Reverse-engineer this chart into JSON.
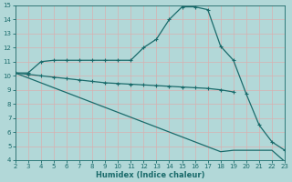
{
  "title": "",
  "xlabel": "Humidex (Indice chaleur)",
  "ylabel": "",
  "bg_color": "#b2d8d8",
  "grid_color": "#e8c8c8",
  "line_color": "#1a6b6b",
  "xlim": [
    2,
    23
  ],
  "ylim": [
    4,
    15
  ],
  "xticks": [
    2,
    3,
    4,
    5,
    6,
    7,
    8,
    9,
    10,
    11,
    12,
    13,
    14,
    15,
    16,
    17,
    18,
    19,
    20,
    21,
    22,
    23
  ],
  "yticks": [
    4,
    5,
    6,
    7,
    8,
    9,
    10,
    11,
    12,
    13,
    14,
    15
  ],
  "curve1_x": [
    2,
    3,
    4,
    5,
    6,
    7,
    8,
    9,
    10,
    11,
    12,
    13,
    14,
    15,
    16,
    17,
    18,
    19,
    20,
    21,
    22,
    23
  ],
  "curve1_y": [
    10.2,
    10.2,
    11.0,
    11.1,
    11.1,
    11.1,
    11.1,
    11.1,
    11.1,
    11.1,
    12.0,
    12.6,
    14.0,
    14.9,
    14.9,
    14.7,
    12.1,
    11.1,
    8.7,
    6.5,
    5.3,
    4.7
  ],
  "curve2_x": [
    2,
    3,
    4,
    5,
    6,
    7,
    8,
    9,
    10,
    11,
    12,
    13,
    14,
    15,
    16,
    17,
    18,
    19
  ],
  "curve2_y": [
    10.2,
    10.1,
    10.0,
    9.9,
    9.8,
    9.7,
    9.6,
    9.5,
    9.45,
    9.4,
    9.35,
    9.3,
    9.25,
    9.2,
    9.15,
    9.1,
    9.0,
    8.85
  ],
  "curve3_x": [
    2,
    3,
    4,
    5,
    6,
    7,
    8,
    9,
    10,
    11,
    12,
    13,
    14,
    15,
    16,
    17,
    18,
    19,
    20,
    21,
    22,
    23
  ],
  "curve3_y": [
    10.2,
    9.85,
    9.5,
    9.15,
    8.8,
    8.45,
    8.1,
    7.75,
    7.4,
    7.05,
    6.7,
    6.35,
    6.0,
    5.65,
    5.3,
    4.95,
    4.6,
    4.7,
    4.7,
    4.7,
    4.7,
    3.9
  ]
}
